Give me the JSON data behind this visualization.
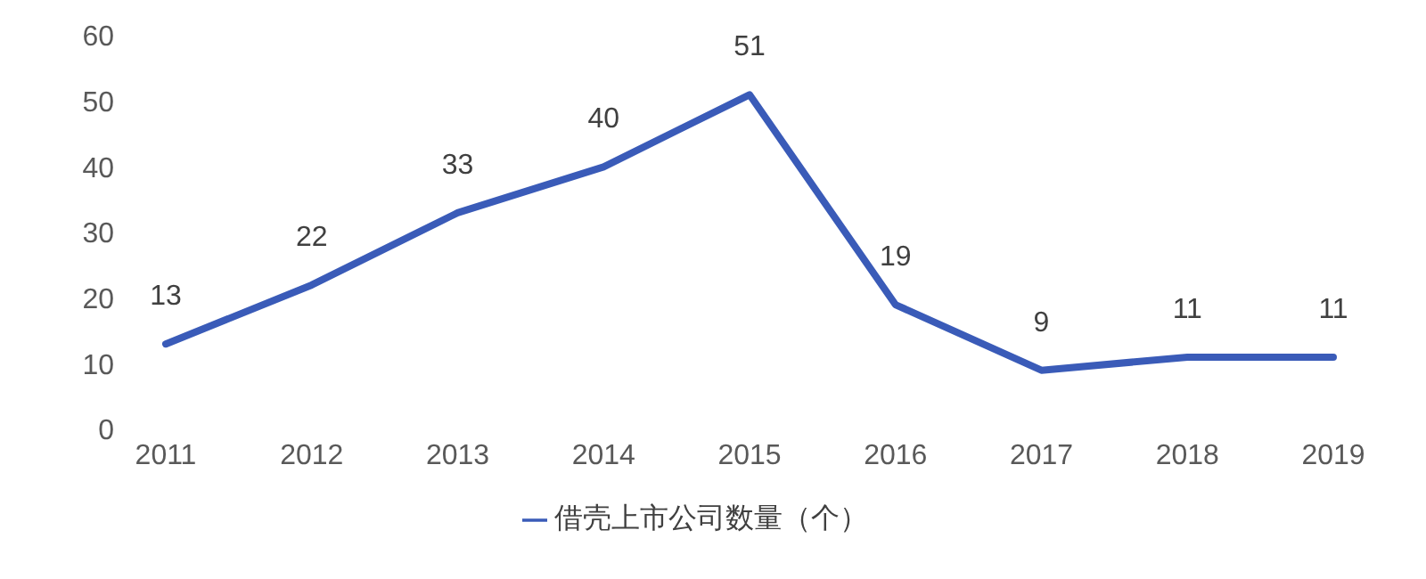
{
  "chart_data": {
    "type": "line",
    "categories": [
      "2011",
      "2012",
      "2013",
      "2014",
      "2015",
      "2016",
      "2017",
      "2018",
      "2019"
    ],
    "series": [
      {
        "name": "借壳上市公司数量（个）",
        "color": "#3a5bb8",
        "values": [
          13,
          22,
          33,
          40,
          51,
          19,
          9,
          11,
          11
        ]
      }
    ],
    "ylim": [
      0,
      60
    ],
    "yticks": [
      0,
      10,
      20,
      30,
      40,
      50,
      60
    ],
    "grid": false,
    "legend": "bottom",
    "marker": "none",
    "line_style": "solid",
    "data_labels": true
  }
}
